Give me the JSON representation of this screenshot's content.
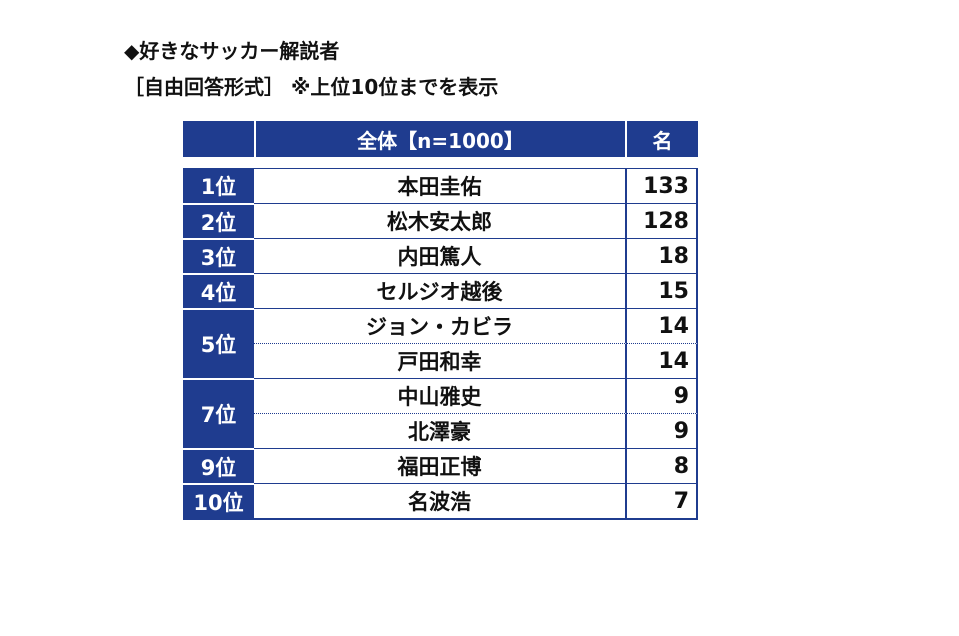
{
  "heading": {
    "title": "◆好きなサッカー解説者",
    "subtitle": "［自由回答形式］ ※上位10位までを表示"
  },
  "colors": {
    "header_bg": "#1f3c8f",
    "header_text": "#ffffff"
  },
  "chart_data": {
    "type": "table",
    "columns": [
      "",
      "全体【n=1000】",
      "名"
    ],
    "rows": [
      {
        "rank": "1位",
        "name": "本田圭佑",
        "count": 133
      },
      {
        "rank": "2位",
        "name": "松木安太郎",
        "count": 128
      },
      {
        "rank": "3位",
        "name": "内田篤人",
        "count": 18
      },
      {
        "rank": "4位",
        "name": "セルジオ越後",
        "count": 15
      },
      {
        "rank": "5位",
        "name": "ジョン・カビラ",
        "count": 14
      },
      {
        "rank": "",
        "name": "戸田和幸",
        "count": 14
      },
      {
        "rank": "7位",
        "name": "中山雅史",
        "count": 9
      },
      {
        "rank": "",
        "name": "北澤豪",
        "count": 9
      },
      {
        "rank": "9位",
        "name": "福田正博",
        "count": 8
      },
      {
        "rank": "10位",
        "name": "名波浩",
        "count": 7
      }
    ]
  }
}
